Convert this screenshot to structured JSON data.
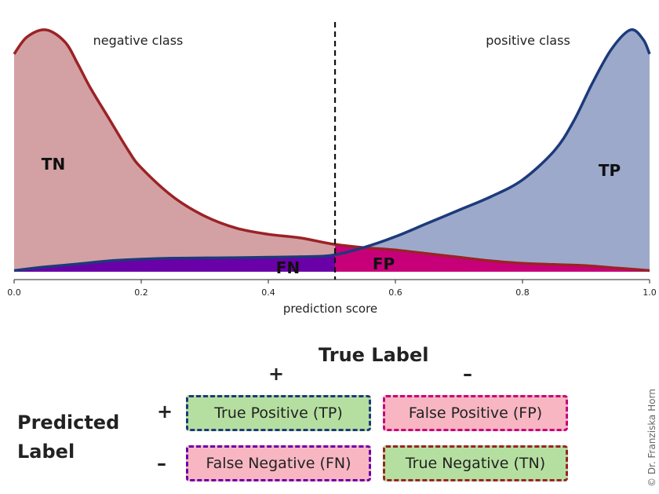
{
  "chart_data": {
    "type": "area",
    "xlabel": "prediction score",
    "xlim": [
      0.0,
      1.0
    ],
    "ylim": [
      0,
      1
    ],
    "x_ticks": [
      "0.0",
      "0.2",
      "0.4",
      "0.6",
      "0.8",
      "1.0"
    ],
    "threshold": 0.505,
    "class_labels": {
      "negative": "negative class",
      "positive": "positive class"
    },
    "region_labels": {
      "tn": "TN",
      "tp": "TP",
      "fn": "FN",
      "fp": "FP"
    },
    "series": [
      {
        "color_line": "#9b2226",
        "color_fill": "#d3a1a3",
        "x": [
          0,
          0.02,
          0.05,
          0.08,
          0.1,
          0.12,
          0.15,
          0.18,
          0.2,
          0.25,
          0.3,
          0.35,
          0.4,
          0.45,
          0.5,
          0.55,
          0.6,
          0.65,
          0.7,
          0.75,
          0.8,
          0.85,
          0.9,
          0.95,
          1.0
        ],
        "y": [
          0.9,
          0.97,
          1.0,
          0.95,
          0.86,
          0.76,
          0.63,
          0.5,
          0.43,
          0.31,
          0.23,
          0.18,
          0.155,
          0.14,
          0.115,
          0.1,
          0.09,
          0.075,
          0.06,
          0.045,
          0.035,
          0.03,
          0.025,
          0.015,
          0.005
        ]
      },
      {
        "color_line": "#1d3a7a",
        "color_fill": "#9ca9cb",
        "x": [
          0,
          0.05,
          0.1,
          0.15,
          0.2,
          0.25,
          0.3,
          0.35,
          0.4,
          0.45,
          0.5,
          0.55,
          0.6,
          0.65,
          0.7,
          0.75,
          0.8,
          0.85,
          0.88,
          0.91,
          0.94,
          0.97,
          0.99,
          1.0
        ],
        "y": [
          0.005,
          0.02,
          0.032,
          0.045,
          0.052,
          0.056,
          0.057,
          0.058,
          0.06,
          0.062,
          0.068,
          0.1,
          0.145,
          0.2,
          0.255,
          0.31,
          0.38,
          0.5,
          0.62,
          0.78,
          0.92,
          1.0,
          0.96,
          0.9
        ]
      }
    ],
    "colors": {
      "fn_fill": "#6a00a8",
      "fp_fill": "#c7007a",
      "threshold_line": "#111111"
    }
  },
  "matrix": {
    "title": "True Label",
    "true_plus": "+",
    "true_minus": "–",
    "predicted_label": "Predicted Label",
    "pred_plus": "+",
    "pred_minus": "–",
    "tp": "True Positive (TP)",
    "fp": "False Positive (FP)",
    "fn": "False Negative (FN)",
    "tn": "True Negative (TN)",
    "colors": {
      "green_fill": "#b5dfa0",
      "pink_fill": "#f7b6c2",
      "tp_border": "#1d3a7a",
      "fp_border": "#c7007a",
      "fn_border": "#6a00a8",
      "tn_border": "#9b2226"
    }
  },
  "copyright": "© Dr. Franziska Horn"
}
